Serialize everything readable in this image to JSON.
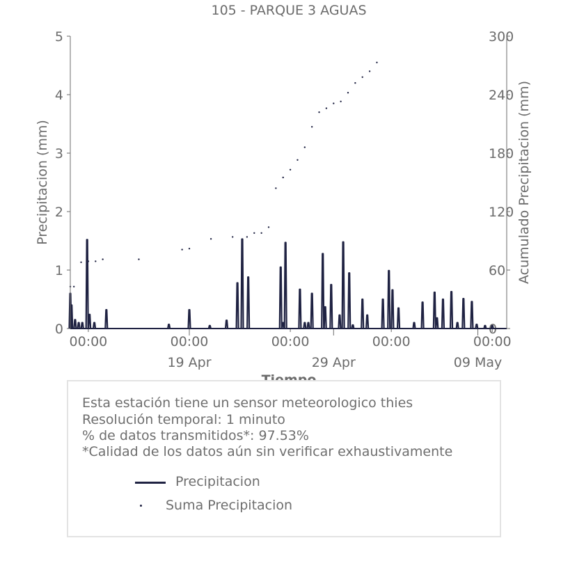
{
  "chart_data": {
    "type": "line",
    "title": "105 - PARQUE 3 AGUAS",
    "xlabel": "Tiempo",
    "ylabel": "Precipitacion (mm)",
    "y2label": "Acumulado Precipitacion (mm)",
    "ylim": [
      0,
      5
    ],
    "y2lim": [
      0,
      300
    ],
    "yticks": [
      "0",
      "1",
      "2",
      "3",
      "4",
      "5"
    ],
    "y2ticks": [
      "0",
      "60",
      "120",
      "180",
      "240",
      "300"
    ],
    "xlim": [
      "2025-04-10T18:00",
      "2025-05-11T00:00"
    ],
    "xticks_minor": [
      {
        "x": "2025-04-12T00:00",
        "label": "00:00"
      },
      {
        "x": "2025-04-19T00:00",
        "label": "00:00"
      },
      {
        "x": "2025-04-26T00:00",
        "label": "00:00"
      },
      {
        "x": "2025-05-03T00:00",
        "label": "00:00"
      },
      {
        "x": "2025-05-10T00:00",
        "label": "00:00"
      }
    ],
    "xticks_major": [
      {
        "x": "2025-04-19T00:00",
        "label": "19 Apr"
      },
      {
        "x": "2025-04-29T00:00",
        "label": "29 Apr"
      },
      {
        "x": "2025-05-09T00:00",
        "label": "09 May"
      }
    ],
    "series": [
      {
        "name": "Precipitacion",
        "axis": "left",
        "color": "#1f2242",
        "style": "line",
        "x": [
          "2025-04-10T18:00",
          "2025-04-10T20:00",
          "2025-04-11T02:00",
          "2025-04-11T08:00",
          "2025-04-11T14:00",
          "2025-04-11T22:00",
          "2025-04-12T02:00",
          "2025-04-12T10:00",
          "2025-04-13T06:00",
          "2025-04-17T14:00",
          "2025-04-19T00:00",
          "2025-04-20T10:00",
          "2025-04-21T14:00",
          "2025-04-22T08:00",
          "2025-04-22T16:00",
          "2025-04-23T02:00",
          "2025-04-25T08:00",
          "2025-04-25T12:00",
          "2025-04-25T16:00",
          "2025-04-26T16:00",
          "2025-04-27T00:00",
          "2025-04-27T06:00",
          "2025-04-27T12:00",
          "2025-04-28T06:00",
          "2025-04-28T10:00",
          "2025-04-28T20:00",
          "2025-04-29T10:00",
          "2025-04-29T16:00",
          "2025-04-30T02:00",
          "2025-04-30T08:00",
          "2025-05-01T00:00",
          "2025-05-01T08:00",
          "2025-05-02T10:00",
          "2025-05-02T20:00",
          "2025-05-03T02:00",
          "2025-05-03T12:00",
          "2025-05-04T14:00",
          "2025-05-05T04:00",
          "2025-05-06T00:00",
          "2025-05-06T04:00",
          "2025-05-06T14:00",
          "2025-05-07T04:00",
          "2025-05-07T14:00",
          "2025-05-08T00:00",
          "2025-05-08T14:00",
          "2025-05-08T22:00",
          "2025-05-09T12:00",
          "2025-05-10T00:00"
        ],
        "values": [
          0.6,
          0.4,
          0.15,
          0.1,
          0.1,
          1.52,
          0.24,
          0.1,
          0.32,
          0.07,
          0.32,
          0.05,
          0.14,
          0.78,
          1.53,
          0.88,
          1.05,
          0.1,
          1.47,
          0.67,
          0.1,
          0.1,
          0.6,
          1.28,
          0.37,
          0.75,
          0.23,
          1.48,
          0.95,
          0.06,
          0.5,
          0.23,
          0.5,
          0.99,
          0.66,
          0.35,
          0.1,
          0.45,
          0.62,
          0.18,
          0.5,
          0.63,
          0.1,
          0.51,
          0.46,
          0.07,
          0.05,
          0.05
        ]
      },
      {
        "name": "Suma Precipitacion",
        "axis": "right",
        "color": "#1f2242",
        "style": "dots",
        "x": [
          "2025-04-10T18:00",
          "2025-04-11T00:00",
          "2025-04-11T12:00",
          "2025-04-12T00:00",
          "2025-04-12T12:00",
          "2025-04-13T00:00",
          "2025-04-15T12:00",
          "2025-04-18T12:00",
          "2025-04-19T00:00",
          "2025-04-20T12:00",
          "2025-04-22T00:00",
          "2025-04-23T00:00",
          "2025-04-23T12:00",
          "2025-04-24T00:00",
          "2025-04-24T12:00",
          "2025-04-25T00:00",
          "2025-04-25T12:00",
          "2025-04-26T00:00",
          "2025-04-26T12:00",
          "2025-04-27T00:00",
          "2025-04-27T12:00",
          "2025-04-28T00:00",
          "2025-04-28T12:00",
          "2025-04-29T00:00",
          "2025-04-29T12:00",
          "2025-04-30T00:00",
          "2025-04-30T12:00",
          "2025-05-01T00:00",
          "2025-05-01T12:00",
          "2025-05-02T00:00"
        ],
        "values": [
          43,
          43,
          68,
          69,
          69,
          71,
          71,
          81,
          82,
          92,
          94,
          94,
          98,
          98,
          104,
          144,
          155,
          163,
          173,
          186,
          207,
          222,
          226,
          231,
          233,
          242,
          252,
          258,
          264,
          273
        ]
      }
    ]
  },
  "info": {
    "line1": "Esta estación tiene un sensor meteorologico thies",
    "line2": "Resolución temporal: 1 minuto",
    "line3": "% de datos transmitidos*: 97.53%",
    "line4": "*Calidad de los datos aún sin verificar exhaustivamente"
  },
  "legend": {
    "line_label": "Precipitacion",
    "dot_label": "Suma Precipitacion"
  },
  "colors": {
    "series": "#1f2242",
    "text": "#6b6b6b",
    "axis": "#6b6b6b",
    "box_border": "#e3e3e3"
  }
}
